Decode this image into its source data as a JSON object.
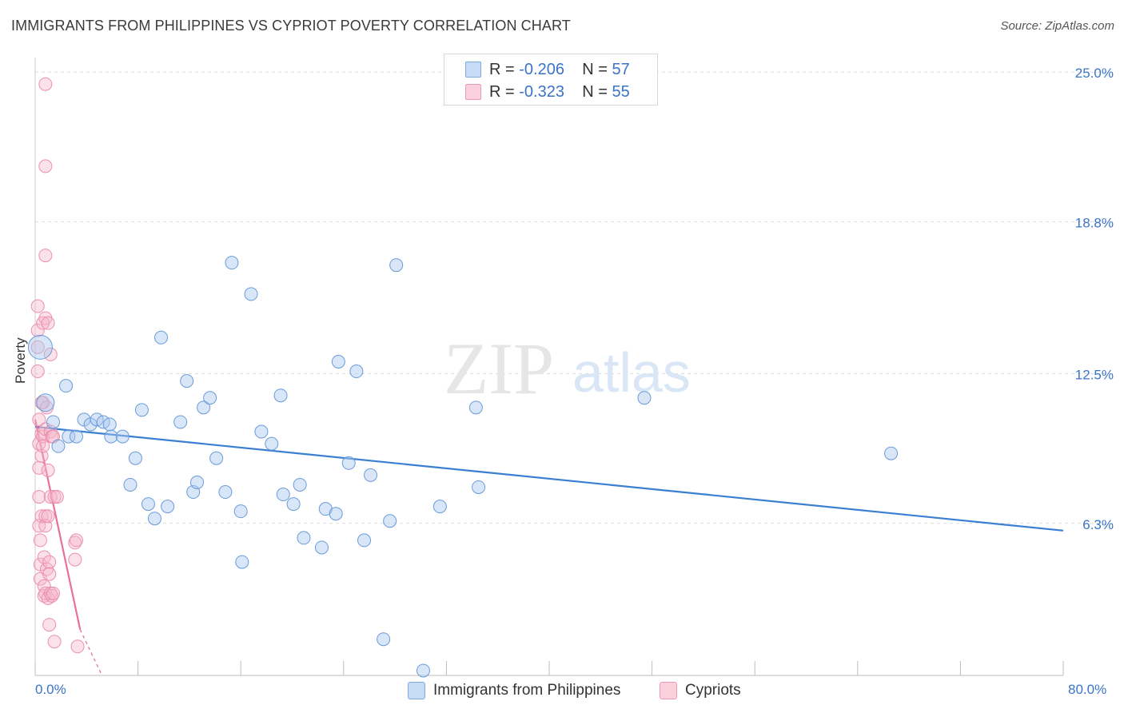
{
  "header": {
    "title": "IMMIGRANTS FROM PHILIPPINES VS CYPRIOT POVERTY CORRELATION CHART",
    "source": "Source: ZipAtlas.com"
  },
  "watermark": {
    "zip": "ZIP",
    "atlas": "atlas"
  },
  "legend": {
    "rows": [
      {
        "r_label": "R =",
        "r_value": "-0.206",
        "n_label": "N =",
        "n_value": "57",
        "color": "#a9c8f0"
      },
      {
        "r_label": "R =",
        "r_value": "-0.323",
        "n_label": "N =",
        "n_value": "55",
        "color": "#f6b7cb"
      }
    ]
  },
  "bottom_legend": [
    {
      "label": "Immigrants from Philippines",
      "color": "#a9c8f0"
    },
    {
      "label": "Cypriots",
      "color": "#f6b7cb"
    }
  ],
  "axes": {
    "ylabel": "Poverty",
    "x_min_label": "0.0%",
    "x_max_label": "80.0%",
    "y_ticks": [
      "25.0%",
      "18.8%",
      "12.5%",
      "6.3%"
    ]
  },
  "colors": {
    "blue": "#3a7fd1",
    "blue_fill": "#a9c8f0",
    "pink": "#e8719a",
    "pink_fill": "#f6b7cb",
    "grid": "#dcdcdc",
    "tick_text": "#3a74c9"
  },
  "chart_data": {
    "type": "scatter",
    "xlabel": "",
    "ylabel": "Poverty",
    "xlim": [
      0,
      80
    ],
    "ylim": [
      0,
      25.6
    ],
    "y_ticks": [
      6.3,
      12.5,
      18.8,
      25.0
    ],
    "grid": true,
    "series": [
      {
        "name": "Immigrants from Philippines",
        "color": "#3a7fd1",
        "trend": {
          "x": [
            0,
            80
          ],
          "y": [
            10.3,
            6.0
          ]
        },
        "points": [
          [
            0.4,
            13.6,
            3
          ],
          [
            0.8,
            11.3,
            2
          ],
          [
            1.4,
            10.5,
            1
          ],
          [
            1.8,
            9.5,
            1
          ],
          [
            2.4,
            12.0,
            1
          ],
          [
            2.6,
            9.9,
            1
          ],
          [
            3.2,
            9.9,
            1
          ],
          [
            3.8,
            10.6,
            1
          ],
          [
            4.3,
            10.4,
            1
          ],
          [
            4.8,
            10.6,
            1
          ],
          [
            5.3,
            10.5,
            1
          ],
          [
            5.8,
            10.4,
            1
          ],
          [
            5.9,
            9.9,
            1
          ],
          [
            6.8,
            9.9,
            1
          ],
          [
            7.4,
            7.9,
            1
          ],
          [
            7.8,
            9.0,
            1
          ],
          [
            8.3,
            11.0,
            1
          ],
          [
            8.8,
            7.1,
            1
          ],
          [
            9.3,
            6.5,
            1
          ],
          [
            9.8,
            14.0,
            1
          ],
          [
            10.3,
            7.0,
            1
          ],
          [
            11.3,
            10.5,
            1
          ],
          [
            11.8,
            12.2,
            1
          ],
          [
            12.3,
            7.6,
            1
          ],
          [
            12.6,
            8.0,
            1
          ],
          [
            13.1,
            11.1,
            1
          ],
          [
            13.6,
            11.5,
            1
          ],
          [
            14.1,
            9.0,
            1
          ],
          [
            14.8,
            7.6,
            1
          ],
          [
            15.3,
            17.1,
            1
          ],
          [
            16.0,
            6.8,
            1
          ],
          [
            16.1,
            4.7,
            1
          ],
          [
            16.8,
            15.8,
            1
          ],
          [
            17.6,
            10.1,
            1
          ],
          [
            18.4,
            9.6,
            1
          ],
          [
            19.1,
            11.6,
            1
          ],
          [
            19.3,
            7.5,
            1
          ],
          [
            20.1,
            7.1,
            1
          ],
          [
            20.6,
            7.9,
            1
          ],
          [
            20.9,
            5.7,
            1
          ],
          [
            22.3,
            5.3,
            1
          ],
          [
            22.6,
            6.9,
            1
          ],
          [
            23.4,
            6.7,
            1
          ],
          [
            23.6,
            13.0,
            1
          ],
          [
            24.4,
            8.8,
            1
          ],
          [
            25.0,
            12.6,
            1
          ],
          [
            25.6,
            5.6,
            1
          ],
          [
            26.1,
            8.3,
            1
          ],
          [
            27.1,
            1.5,
            1
          ],
          [
            27.6,
            6.4,
            1
          ],
          [
            28.1,
            17.0,
            1
          ],
          [
            30.2,
            0.2,
            1
          ],
          [
            31.5,
            7.0,
            1
          ],
          [
            34.3,
            11.1,
            1
          ],
          [
            34.5,
            7.8,
            1
          ],
          [
            47.4,
            11.5,
            1
          ],
          [
            66.6,
            9.2,
            1
          ]
        ]
      },
      {
        "name": "Cypriots",
        "color": "#e8719a",
        "trend": {
          "x": [
            0,
            3.5
          ],
          "y": [
            10.6,
            1.9
          ]
        },
        "trend_dashed": {
          "x": [
            3.5,
            5.2
          ],
          "y": [
            1.9,
            -2.4
          ]
        },
        "points": [
          [
            0.2,
            15.3,
            1
          ],
          [
            0.2,
            14.3,
            1
          ],
          [
            0.2,
            13.6,
            1
          ],
          [
            0.2,
            12.6,
            1
          ],
          [
            0.3,
            10.6,
            1
          ],
          [
            0.3,
            9.6,
            1
          ],
          [
            0.3,
            8.6,
            1
          ],
          [
            0.3,
            7.4,
            1
          ],
          [
            0.3,
            6.2,
            1
          ],
          [
            0.4,
            5.6,
            1
          ],
          [
            0.4,
            4.6,
            1
          ],
          [
            0.4,
            4.0,
            1
          ],
          [
            0.5,
            11.3,
            1
          ],
          [
            0.5,
            10.0,
            1
          ],
          [
            0.5,
            9.1,
            1
          ],
          [
            0.5,
            6.6,
            1
          ],
          [
            0.6,
            14.6,
            1
          ],
          [
            0.6,
            11.3,
            1
          ],
          [
            0.6,
            9.9,
            1
          ],
          [
            0.7,
            4.9,
            1
          ],
          [
            0.7,
            3.7,
            1
          ],
          [
            0.7,
            3.3,
            1
          ],
          [
            0.8,
            24.5,
            1
          ],
          [
            0.8,
            21.1,
            1
          ],
          [
            0.8,
            17.4,
            1
          ],
          [
            0.8,
            14.8,
            1
          ],
          [
            0.8,
            10.2,
            1
          ],
          [
            0.8,
            6.6,
            1
          ],
          [
            0.8,
            6.2,
            1
          ],
          [
            0.8,
            3.4,
            1
          ],
          [
            0.9,
            11.1,
            1
          ],
          [
            0.9,
            4.4,
            1
          ],
          [
            1.0,
            14.6,
            1
          ],
          [
            1.0,
            8.5,
            1
          ],
          [
            1.0,
            6.6,
            1
          ],
          [
            1.0,
            3.2,
            1
          ],
          [
            1.1,
            4.7,
            1
          ],
          [
            1.1,
            4.2,
            1
          ],
          [
            1.1,
            2.1,
            1
          ],
          [
            1.2,
            13.3,
            1
          ],
          [
            1.2,
            10.1,
            1
          ],
          [
            1.2,
            7.4,
            1
          ],
          [
            1.2,
            3.4,
            1
          ],
          [
            1.3,
            9.9,
            1
          ],
          [
            1.3,
            3.3,
            1
          ],
          [
            1.4,
            9.9,
            1
          ],
          [
            1.4,
            3.4,
            1
          ],
          [
            1.5,
            7.4,
            1
          ],
          [
            1.5,
            1.4,
            1
          ],
          [
            1.7,
            7.4,
            1
          ],
          [
            3.1,
            5.5,
            1
          ],
          [
            3.2,
            5.6,
            1
          ],
          [
            3.1,
            4.8,
            1
          ],
          [
            3.3,
            1.2,
            1
          ],
          [
            0.6,
            9.5,
            1
          ]
        ]
      }
    ]
  }
}
